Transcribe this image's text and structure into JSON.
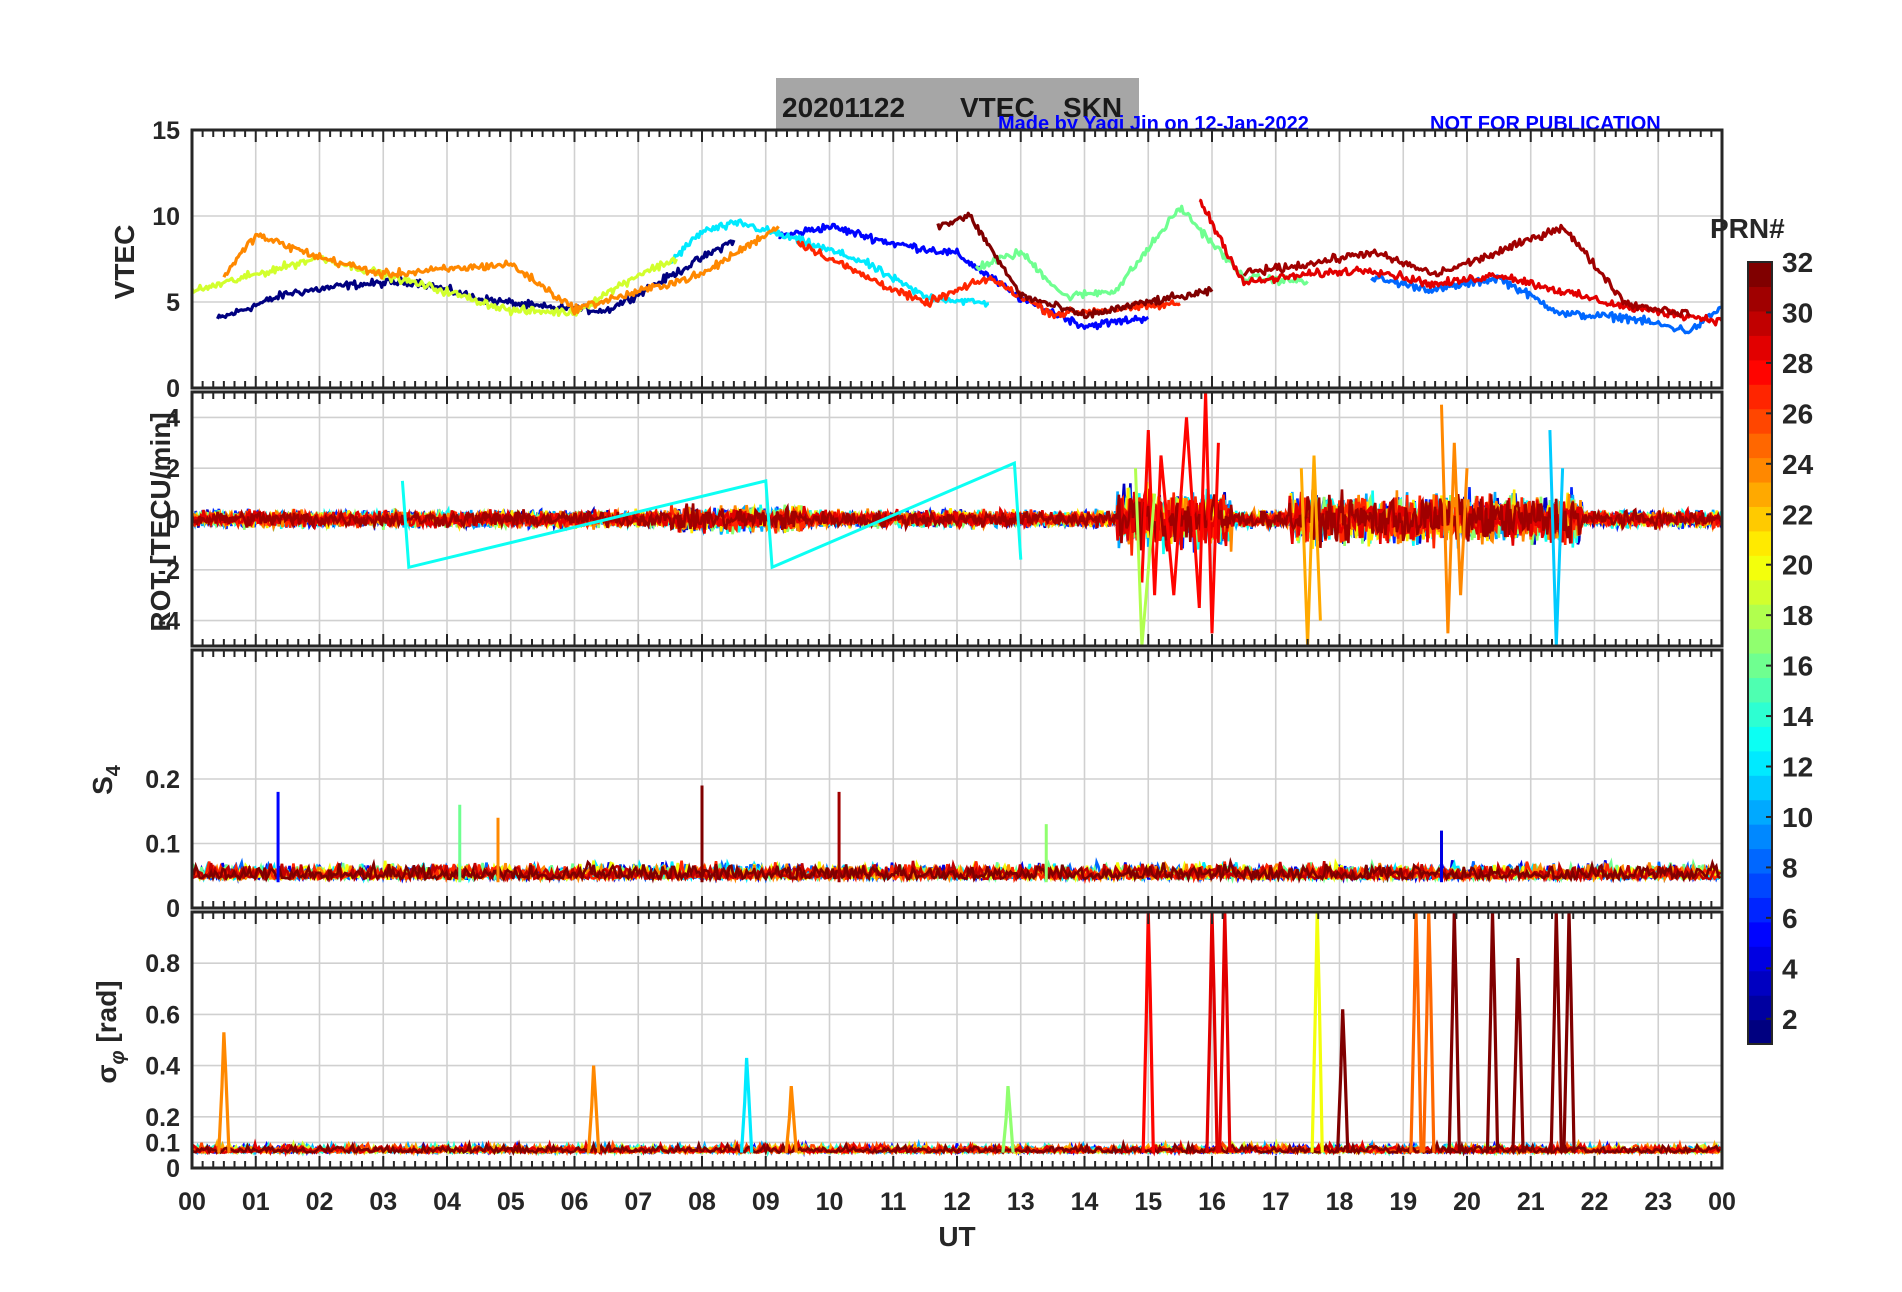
{
  "title": {
    "date": "20201122",
    "parameter": "VTEC",
    "station": "SKN"
  },
  "credits": {
    "made_by": "Made by Yaqi Jin on 12-Jan-2022",
    "warning": "NOT FOR PUBLICATION",
    "color": "#0000ff"
  },
  "colorbar": {
    "label": "PRN#",
    "range": [
      1,
      32
    ],
    "ticks": [
      "2",
      "4",
      "6",
      "8",
      "10",
      "12",
      "14",
      "16",
      "18",
      "20",
      "22",
      "24",
      "26",
      "28",
      "30",
      "32"
    ],
    "colormap": "jet"
  },
  "chart_data": [
    {
      "type": "line",
      "panel": "vtec",
      "ylabel": "VTEC",
      "ylim": [
        0,
        15
      ],
      "yticks": [
        "0",
        "5",
        "10",
        "15"
      ],
      "grid": true,
      "series": [
        {
          "prn": 1,
          "x": [
            0.4,
            1.5,
            2.5,
            3.5,
            4.5,
            5.5,
            6.5,
            7.5,
            8.5
          ],
          "values": [
            4.0,
            5.5,
            6.0,
            6.2,
            5.2,
            4.7,
            4.5,
            6.5,
            8.6
          ]
        },
        {
          "prn": 5,
          "x": [
            9.2,
            10.0,
            11.0,
            12.0,
            13.0,
            14.0,
            15.0
          ],
          "values": [
            8.8,
            9.4,
            8.4,
            7.8,
            5.2,
            3.6,
            4.1
          ]
        },
        {
          "prn": 8,
          "x": [
            18.5,
            19.5,
            20.5,
            21.5,
            22.5,
            23.5,
            24.0
          ],
          "values": [
            6.4,
            5.7,
            6.4,
            4.3,
            4.1,
            3.3,
            4.7
          ]
        },
        {
          "prn": 12,
          "x": [
            7.5,
            8.0,
            8.6,
            9.5,
            10.5,
            11.5,
            12.5
          ],
          "values": [
            7.3,
            9.1,
            9.6,
            8.6,
            7.4,
            5.3,
            4.9
          ]
        },
        {
          "prn": 16,
          "x": [
            12.3,
            13.0,
            13.7,
            14.5,
            15.5,
            16.5,
            17.5
          ],
          "values": [
            7.0,
            7.9,
            5.3,
            5.7,
            10.5,
            6.4,
            6.2
          ]
        },
        {
          "prn": 19,
          "x": [
            0.0,
            1.0,
            2.0,
            3.0,
            4.0,
            5.0,
            6.0,
            7.0,
            7.6
          ],
          "values": [
            5.6,
            6.6,
            7.6,
            6.6,
            5.6,
            4.5,
            4.4,
            6.6,
            7.5
          ]
        },
        {
          "prn": 24,
          "x": [
            0.5,
            1.0,
            2.0,
            3.0,
            4.0,
            5.0,
            6.0,
            7.0,
            8.0,
            9.2
          ],
          "values": [
            6.5,
            8.9,
            7.6,
            6.6,
            6.9,
            7.2,
            4.6,
            5.6,
            6.6,
            9.4
          ]
        },
        {
          "prn": 27,
          "x": [
            9.5,
            10.5,
            11.5,
            12.5,
            13.5,
            14.5,
            15.5
          ],
          "values": [
            8.5,
            6.6,
            4.9,
            6.4,
            4.3,
            4.6,
            4.9
          ]
        },
        {
          "prn": 29,
          "x": [
            15.8,
            16.5,
            17.5,
            18.5,
            19.5,
            20.5,
            21.5,
            22.5,
            24.0
          ],
          "values": [
            11.0,
            6.1,
            6.6,
            6.9,
            6.0,
            6.6,
            5.6,
            4.7,
            3.9
          ]
        },
        {
          "prn": 32,
          "x": [
            11.7,
            12.2,
            13.0,
            14.0,
            15.0,
            16.0
          ],
          "values": [
            9.4,
            10.0,
            5.4,
            4.2,
            5.0,
            5.6
          ]
        },
        {
          "prn": 31,
          "x": [
            16.5,
            17.5,
            18.5,
            19.5,
            20.5,
            21.5,
            22.5,
            23.5
          ],
          "values": [
            6.7,
            7.2,
            7.9,
            6.6,
            7.9,
            9.4,
            4.9,
            4.3
          ]
        }
      ]
    },
    {
      "type": "line",
      "panel": "rot",
      "ylabel": "ROT [TECU/min]",
      "ylim": [
        -5,
        5
      ],
      "yticks": [
        "-4",
        "-2",
        "0",
        "2",
        "4"
      ],
      "grid": true,
      "series": [
        {
          "prn": 28,
          "x": [
            14.9,
            15.0,
            15.1,
            15.2,
            15.4,
            15.6,
            15.8,
            15.9,
            16.0,
            16.1
          ],
          "values": [
            -2.5,
            3.5,
            -3.0,
            2.5,
            -3.0,
            4.0,
            -3.5,
            5.0,
            -4.5,
            3.0
          ]
        },
        {
          "prn": 18,
          "x": [
            14.8,
            14.9,
            15.0,
            15.1
          ],
          "values": [
            2.0,
            -5.0,
            -2.0,
            1.0
          ]
        },
        {
          "prn": 23,
          "x": [
            17.4,
            17.5,
            17.6,
            17.7
          ],
          "values": [
            2.0,
            -5.0,
            2.5,
            -4.0
          ]
        },
        {
          "prn": 11,
          "x": [
            21.3,
            21.4,
            21.5
          ],
          "values": [
            3.5,
            -5.0,
            2.0
          ]
        },
        {
          "prn": 24,
          "x": [
            19.6,
            19.7,
            19.8,
            19.9,
            20.0
          ],
          "values": [
            4.5,
            -4.5,
            3.0,
            -3.0,
            2.0
          ]
        },
        {
          "prn": 13,
          "x": [
            3.3,
            3.4,
            9.0,
            9.1,
            12.9,
            13.0
          ],
          "values": [
            1.5,
            -1.9,
            1.5,
            -1.9,
            2.2,
            -1.6
          ]
        }
      ]
    },
    {
      "type": "line",
      "panel": "s4",
      "ylabel": "S4",
      "ylim": [
        0,
        0.4
      ],
      "yticks": [
        "0",
        "0.1",
        "0.2"
      ],
      "grid": true,
      "series": [
        {
          "prn": 5,
          "x": [
            1.35
          ],
          "values": [
            0.18
          ]
        },
        {
          "prn": 16,
          "x": [
            4.2
          ],
          "values": [
            0.16
          ]
        },
        {
          "prn": 24,
          "x": [
            4.8
          ],
          "values": [
            0.14
          ]
        },
        {
          "prn": 32,
          "x": [
            8.0
          ],
          "values": [
            0.19
          ]
        },
        {
          "prn": 31,
          "x": [
            10.15
          ],
          "values": [
            0.18
          ]
        },
        {
          "prn": 17,
          "x": [
            13.4
          ],
          "values": [
            0.13
          ]
        },
        {
          "prn": 4,
          "x": [
            19.6
          ],
          "values": [
            0.12
          ]
        }
      ]
    },
    {
      "type": "line",
      "panel": "sigma_phi",
      "ylabel": "σ_φ [rad]",
      "ylim": [
        0,
        1
      ],
      "yticks": [
        "0",
        "0.1",
        "0.2",
        "0.4",
        "0.6",
        "0.8"
      ],
      "grid": true,
      "series": [
        {
          "prn": 24,
          "x": [
            0.5
          ],
          "values": [
            0.53
          ]
        },
        {
          "prn": 24,
          "x": [
            6.3
          ],
          "values": [
            0.4
          ]
        },
        {
          "prn": 12,
          "x": [
            8.7
          ],
          "values": [
            0.43
          ]
        },
        {
          "prn": 24,
          "x": [
            9.4
          ],
          "values": [
            0.32
          ]
        },
        {
          "prn": 17,
          "x": [
            12.8
          ],
          "values": [
            0.32
          ]
        },
        {
          "prn": 28,
          "x": [
            15.0
          ],
          "values": [
            1.0
          ]
        },
        {
          "prn": 29,
          "x": [
            16.0,
            16.2
          ],
          "values": [
            1.0,
            1.0
          ]
        },
        {
          "prn": 20,
          "x": [
            17.65
          ],
          "values": [
            1.0
          ]
        },
        {
          "prn": 32,
          "x": [
            18.05
          ],
          "values": [
            0.62
          ]
        },
        {
          "prn": 25,
          "x": [
            19.2,
            19.4
          ],
          "values": [
            1.0,
            1.0
          ]
        },
        {
          "prn": 32,
          "x": [
            19.8,
            20.4,
            20.8,
            21.4,
            21.6
          ],
          "values": [
            1.0,
            1.0,
            0.82,
            1.0,
            1.0
          ]
        }
      ]
    }
  ],
  "xaxis": {
    "label": "UT",
    "range": [
      0,
      24
    ],
    "ticks": [
      "00",
      "01",
      "02",
      "03",
      "04",
      "05",
      "06",
      "07",
      "08",
      "09",
      "10",
      "11",
      "12",
      "13",
      "14",
      "15",
      "16",
      "17",
      "18",
      "19",
      "20",
      "21",
      "22",
      "23",
      "00"
    ]
  }
}
